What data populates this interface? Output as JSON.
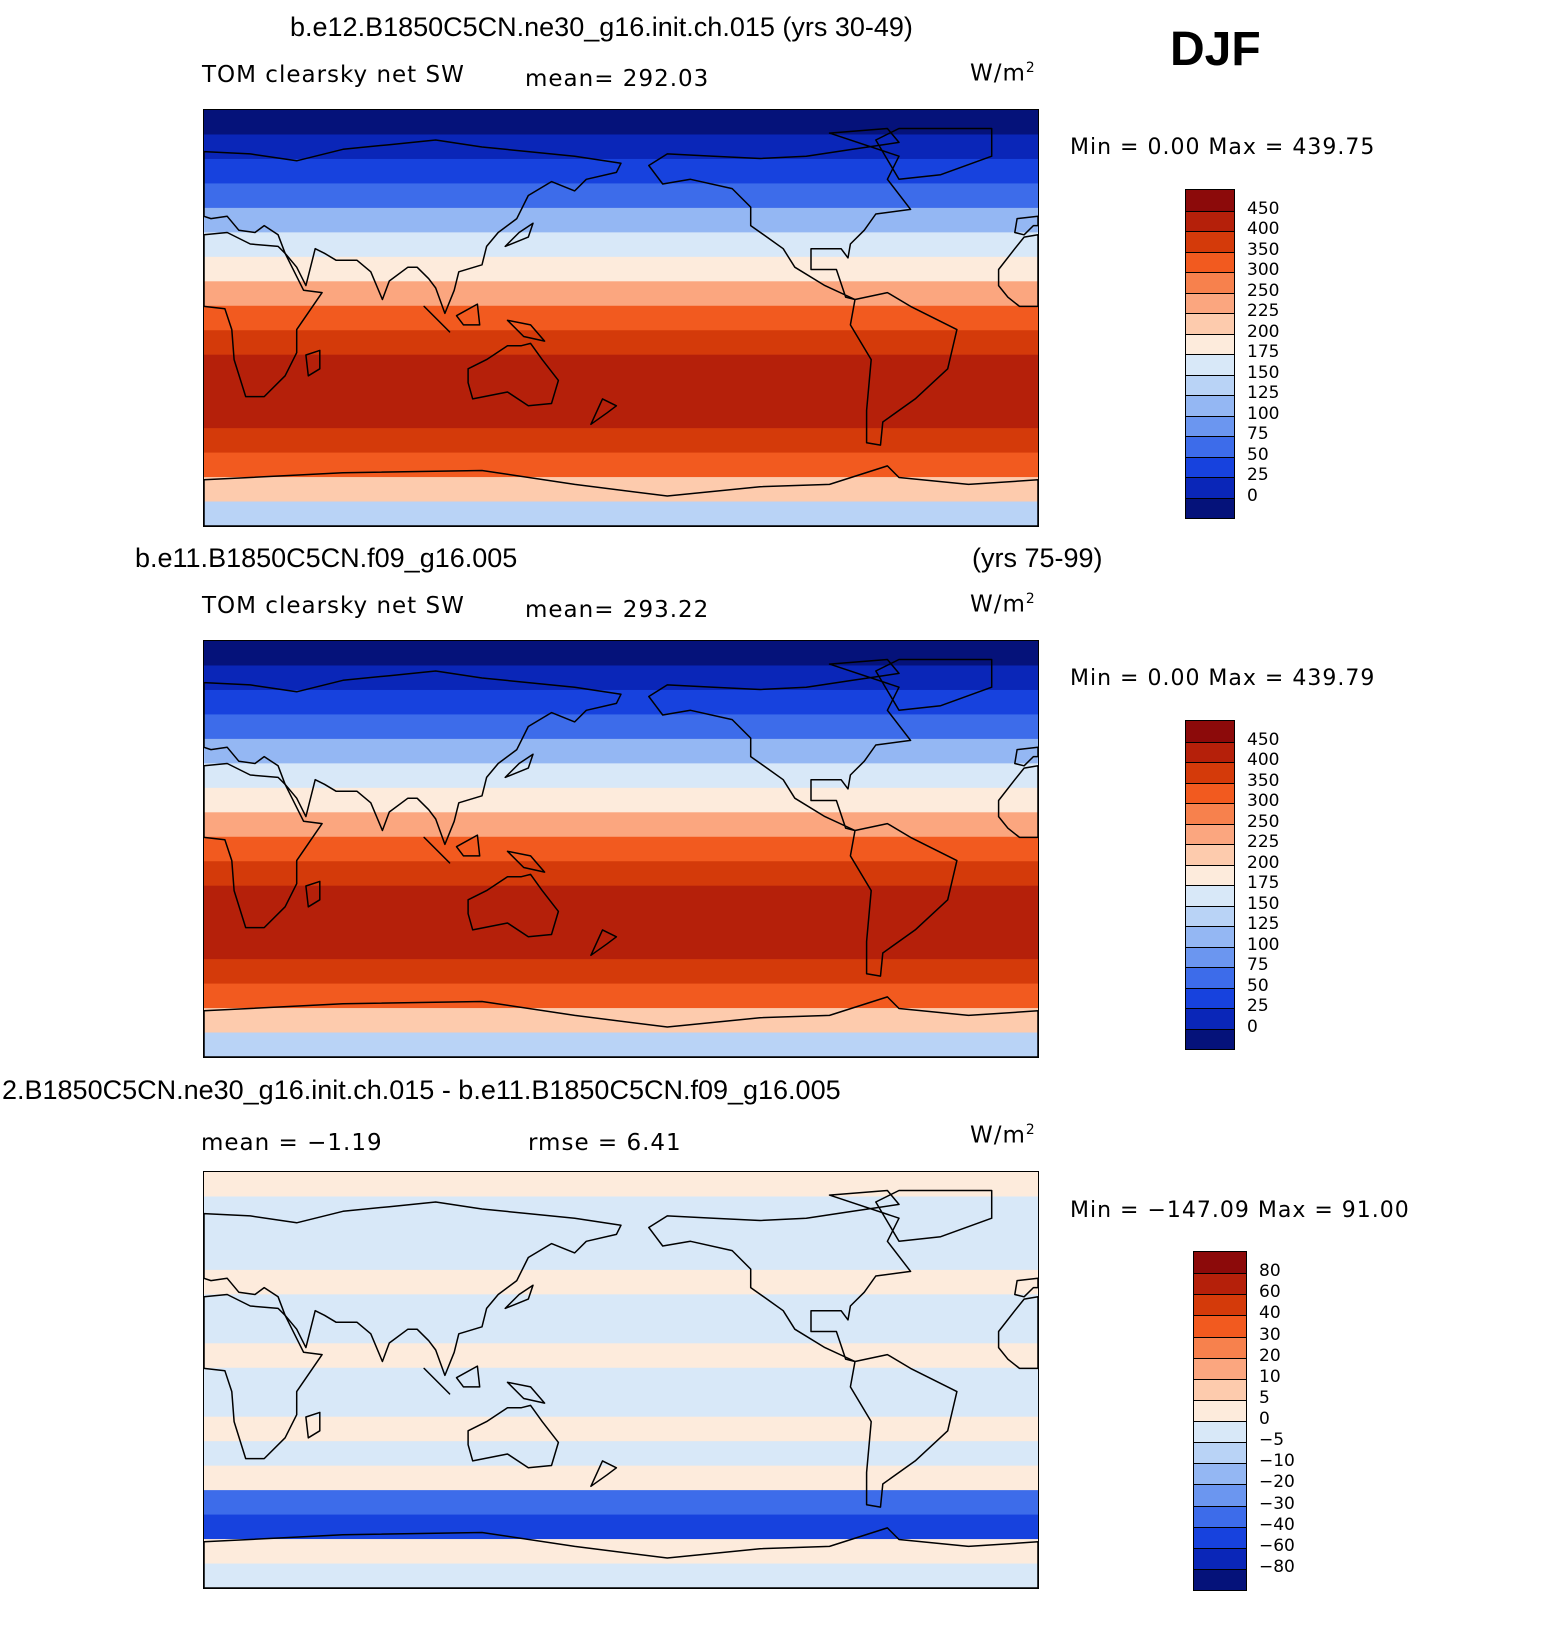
{
  "season": "DJF",
  "panels": [
    {
      "id": "top",
      "case_title": "b.e12.B1850C5CN.ne30_g16.init.ch.015 (yrs 30-49)",
      "years": "",
      "variable": "TOM clearsky net SW",
      "stat1": "mean=  292.03",
      "stat2": "",
      "units": "W/m",
      "units_sup": "2",
      "minmax": "Min =     0.00  Max =  439.75",
      "colorbar": {
        "ticks": [
          "450",
          "400",
          "350",
          "300",
          "250",
          "225",
          "200",
          "175",
          "150",
          "125",
          "100",
          "75",
          "50",
          "25",
          "0"
        ],
        "colors": [
          "#8c0a0a",
          "#b5200a",
          "#d43a0a",
          "#f25a1f",
          "#f7814d",
          "#fba67f",
          "#fdcbad",
          "#fdebdc",
          "#d8e8f8",
          "#b9d3f6",
          "#94b7f3",
          "#6b96f0",
          "#3d6cea",
          "#1742de",
          "#0a26b8",
          "#05127a"
        ]
      },
      "map_colors": {
        "bands": [
          "#05127a",
          "#0a26b8",
          "#1742de",
          "#3d6cea",
          "#94b7f3",
          "#d8e8f8",
          "#fdebdc",
          "#fba67f",
          "#f25a1f",
          "#d43a0a",
          "#b5200a",
          "#b5200a",
          "#b5200a",
          "#d43a0a",
          "#f25a1f",
          "#fdcbad",
          "#b9d3f6"
        ]
      }
    },
    {
      "id": "middle",
      "case_title": "b.e11.B1850C5CN.f09_g16.005",
      "years": "(yrs 75-99)",
      "variable": "TOM clearsky net SW",
      "stat1": "mean=  293.22",
      "stat2": "",
      "units": "W/m",
      "units_sup": "2",
      "minmax": "Min =     0.00  Max =  439.79",
      "colorbar": {
        "ticks": [
          "450",
          "400",
          "350",
          "300",
          "250",
          "225",
          "200",
          "175",
          "150",
          "125",
          "100",
          "75",
          "50",
          "25",
          "0"
        ],
        "colors": [
          "#8c0a0a",
          "#b5200a",
          "#d43a0a",
          "#f25a1f",
          "#f7814d",
          "#fba67f",
          "#fdcbad",
          "#fdebdc",
          "#d8e8f8",
          "#b9d3f6",
          "#94b7f3",
          "#6b96f0",
          "#3d6cea",
          "#1742de",
          "#0a26b8",
          "#05127a"
        ]
      },
      "map_colors": {
        "bands": [
          "#05127a",
          "#0a26b8",
          "#1742de",
          "#3d6cea",
          "#94b7f3",
          "#d8e8f8",
          "#fdebdc",
          "#fba67f",
          "#f25a1f",
          "#d43a0a",
          "#b5200a",
          "#b5200a",
          "#b5200a",
          "#d43a0a",
          "#f25a1f",
          "#fdcbad",
          "#b9d3f6"
        ]
      }
    },
    {
      "id": "diff",
      "case_title": "2.B1850C5CN.ne30_g16.init.ch.015 - b.e11.B1850C5CN.f09_g16.005",
      "years": "",
      "variable": "",
      "stat1": "mean =   −1.19",
      "stat2": "rmse =    6.41",
      "units": "W/m",
      "units_sup": "2",
      "minmax": "Min = −147.09  Max =   91.00",
      "colorbar": {
        "ticks": [
          "80",
          "60",
          "40",
          "30",
          "20",
          "10",
          "5",
          "0",
          "−5",
          "−10",
          "−20",
          "−30",
          "−40",
          "−60",
          "−80"
        ],
        "colors": [
          "#8c0a0a",
          "#b5200a",
          "#d43a0a",
          "#f25a1f",
          "#f7814d",
          "#fba67f",
          "#fdcbad",
          "#fdebdc",
          "#d8e8f8",
          "#b9d3f6",
          "#94b7f3",
          "#6b96f0",
          "#3d6cea",
          "#1742de",
          "#0a26b8",
          "#05127a"
        ]
      },
      "map_colors": {
        "bands": [
          "#fdebdc",
          "#d8e8f8",
          "#d8e8f8",
          "#d8e8f8",
          "#fdebdc",
          "#d8e8f8",
          "#d8e8f8",
          "#fdebdc",
          "#d8e8f8",
          "#d8e8f8",
          "#fdebdc",
          "#d8e8f8",
          "#fdebdc",
          "#3d6cea",
          "#1742de",
          "#fdebdc",
          "#d8e8f8"
        ]
      }
    }
  ]
}
